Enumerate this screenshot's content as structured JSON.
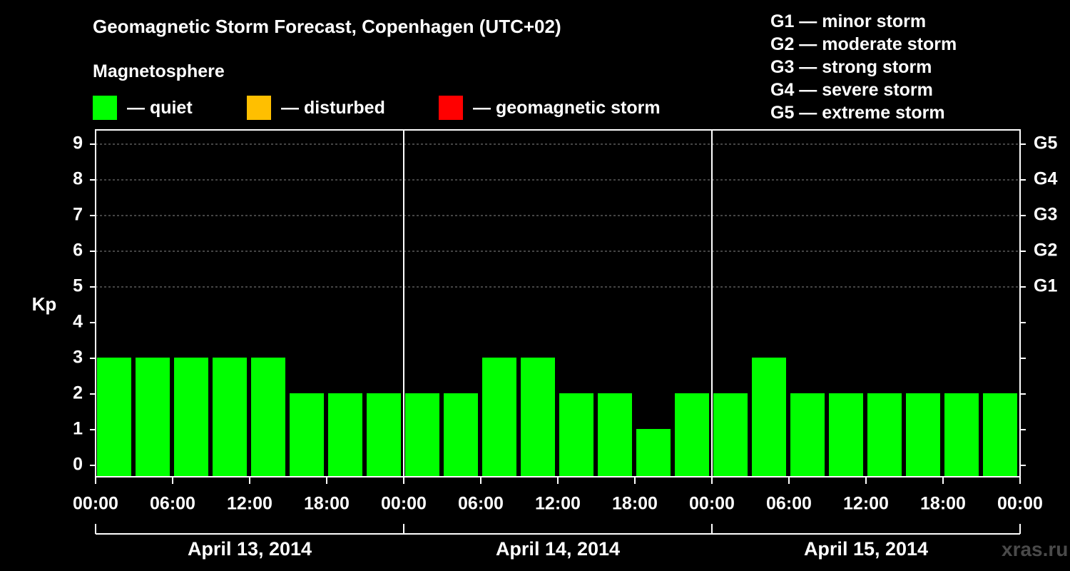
{
  "title": "Geomagnetic Storm Forecast, Copenhagen (UTC+02)",
  "subtitle": "Magnetosphere",
  "legend": [
    {
      "label": "— quiet",
      "color": "#00ff00"
    },
    {
      "label": "— disturbed",
      "color": "#ffbf00"
    },
    {
      "label": "— geomagnetic storm",
      "color": "#ff0000"
    }
  ],
  "storm_scale": [
    "G1 — minor storm",
    "G2 — moderate storm",
    "G3 — strong storm",
    "G4 — severe storm",
    "G5 — extreme storm"
  ],
  "watermark": "xras.ru",
  "chart_data": {
    "type": "bar",
    "ylabel": "Kp",
    "ylim": [
      0,
      9
    ],
    "yticks": [
      0,
      1,
      2,
      3,
      4,
      5,
      6,
      7,
      8,
      9
    ],
    "right_axis_labels": [
      {
        "kp": 5,
        "label": "G1"
      },
      {
        "kp": 6,
        "label": "G2"
      },
      {
        "kp": 7,
        "label": "G3"
      },
      {
        "kp": 8,
        "label": "G4"
      },
      {
        "kp": 9,
        "label": "G5"
      }
    ],
    "grid": "horizontal dashed lines at Kp 5-9",
    "x_tick_labels": [
      "00:00",
      "06:00",
      "12:00",
      "18:00",
      "00:00",
      "06:00",
      "12:00",
      "18:00",
      "00:00",
      "06:00",
      "12:00",
      "18:00",
      "00:00"
    ],
    "days": [
      "April 13, 2014",
      "April 14, 2014",
      "April 15, 2014"
    ],
    "categories": [
      "April 13 00:00",
      "April 13 03:00",
      "April 13 06:00",
      "April 13 09:00",
      "April 13 12:00",
      "April 13 15:00",
      "April 13 18:00",
      "April 13 21:00",
      "April 14 00:00",
      "April 14 03:00",
      "April 14 06:00",
      "April 14 09:00",
      "April 14 12:00",
      "April 14 15:00",
      "April 14 18:00",
      "April 14 21:00",
      "April 15 00:00",
      "April 15 03:00",
      "April 15 06:00",
      "April 15 09:00",
      "April 15 12:00",
      "April 15 15:00",
      "April 15 18:00",
      "April 15 21:00"
    ],
    "values": [
      3,
      3,
      3,
      3,
      3,
      2,
      2,
      2,
      2,
      2,
      3,
      3,
      2,
      2,
      1,
      2,
      2,
      3,
      2,
      2,
      2,
      2,
      2,
      2
    ],
    "bar_color": "#00ff00"
  }
}
